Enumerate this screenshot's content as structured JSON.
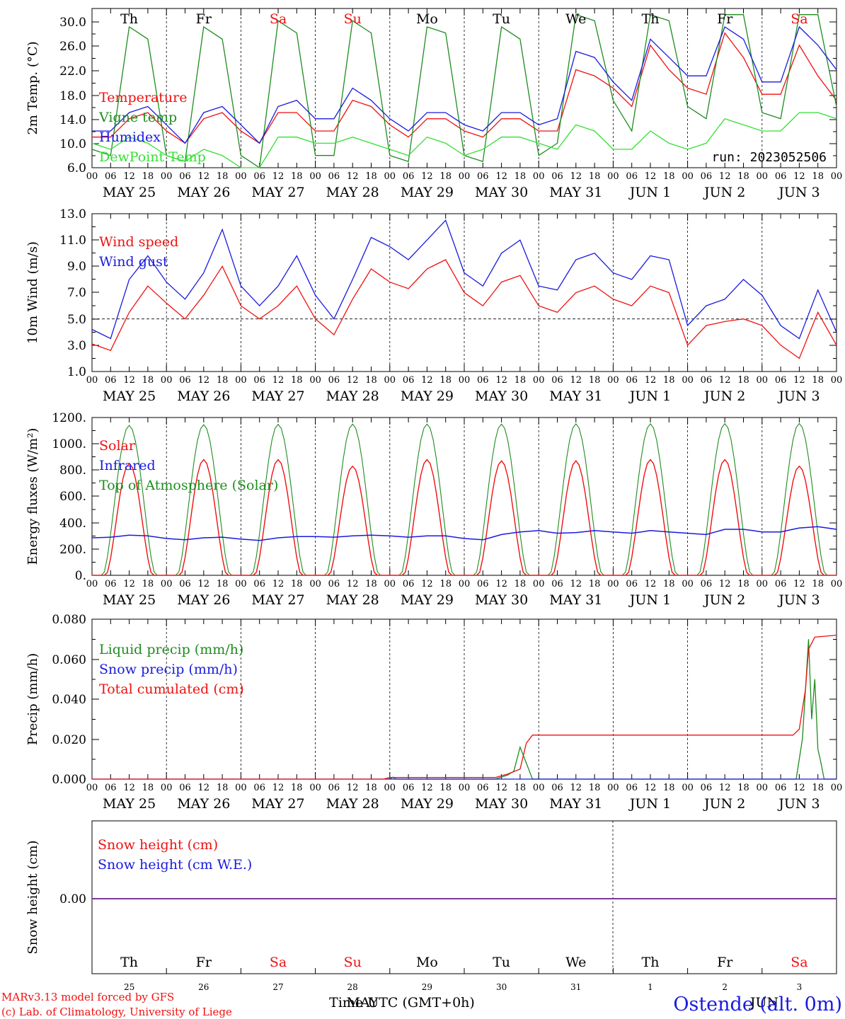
{
  "colors": {
    "red": "#ee1111",
    "blue": "#1a1ae0",
    "green": "#1f8c1f",
    "lightgreen": "#33e033",
    "purple": "#7a3a9a",
    "black": "#000000"
  },
  "day_names": [
    "Th",
    "Fr",
    "Sa",
    "Su",
    "Mo",
    "Tu",
    "We",
    "Th",
    "Fr",
    "Sa"
  ],
  "weekend": [
    false,
    false,
    true,
    true,
    false,
    false,
    false,
    false,
    false,
    true
  ],
  "date_labels": [
    "MAY 25",
    "MAY 26",
    "MAY 27",
    "MAY 28",
    "MAY 29",
    "MAY 30",
    "MAY 31",
    "JUN  1",
    "JUN  2",
    "JUN  3"
  ],
  "hour_labels": [
    "00",
    "06",
    "12",
    "18"
  ],
  "bottom_day_numbers": [
    "25",
    "26",
    "27",
    "28",
    "29",
    "30",
    "31",
    "1",
    "2",
    "3"
  ],
  "time_axis_label": "Time UTC (GMT+0h)",
  "month_labels": [
    "MAY",
    "JUN"
  ],
  "footer": {
    "model": "MARv3.13 model forced by GFS",
    "credit": "(c) Lab. of Climatology, University of Liege",
    "station": "Ostende (alt. 0m)"
  },
  "chart_data": [
    {
      "type": "line",
      "ylabel": "2m Temp. (°C)",
      "ylim": [
        6.0,
        32.0
      ],
      "yticks": [
        "6.0",
        "10.0",
        "14.0",
        "18.0",
        "22.0",
        "26.0",
        "30.0"
      ],
      "run_label": "run: 2023052506",
      "x": "hours since 2023-05-25 00 UTC (0-240, every 6h)",
      "series": [
        {
          "name": "Temperature",
          "color": "red",
          "values": [
            11,
            11,
            14,
            15,
            12,
            10,
            14,
            15,
            12,
            10,
            15,
            15,
            12,
            12,
            17,
            16,
            13,
            11,
            14,
            14,
            12,
            11,
            14,
            14,
            12,
            12,
            22,
            21,
            19,
            16,
            26,
            22,
            19,
            18,
            28,
            24,
            18,
            18,
            26,
            21,
            17
          ]
        },
        {
          "name": "Vigne temp",
          "color": "green",
          "values": [
            9,
            8,
            29,
            27,
            8,
            7,
            29,
            27,
            8,
            6,
            30,
            28,
            8,
            8,
            30,
            28,
            8,
            7,
            29,
            28,
            8,
            7,
            29,
            27,
            8,
            10,
            31,
            30,
            17,
            12,
            31,
            30,
            16,
            14,
            31,
            31,
            15,
            14,
            31,
            31,
            16
          ]
        },
        {
          "name": "Humidex",
          "color": "blue",
          "values": [
            12,
            12,
            15,
            16,
            13,
            10,
            15,
            16,
            13,
            10,
            16,
            17,
            14,
            14,
            19,
            17,
            14,
            12,
            15,
            15,
            13,
            12,
            15,
            15,
            13,
            14,
            25,
            24,
            20,
            17,
            27,
            24,
            21,
            21,
            29,
            27,
            20,
            20,
            29,
            26,
            22
          ]
        },
        {
          "name": "DewPoint Temp",
          "color": "lightgreen",
          "values": [
            10,
            9,
            11,
            10,
            8,
            7,
            9,
            8,
            6,
            6,
            11,
            11,
            10,
            10,
            11,
            10,
            9,
            8,
            11,
            10,
            8,
            9,
            11,
            11,
            10,
            9,
            13,
            12,
            9,
            9,
            12,
            10,
            9,
            10,
            14,
            13,
            12,
            12,
            15,
            15,
            14
          ]
        }
      ]
    },
    {
      "type": "line",
      "ylabel": "10m Wind (m/s)",
      "ylim": [
        1.0,
        13.0
      ],
      "yticks": [
        "1.0",
        "3.0",
        "5.0",
        "7.0",
        "9.0",
        "11.0",
        "13.0"
      ],
      "reference_line": 5.0,
      "series": [
        {
          "name": "Wind speed",
          "color": "red",
          "values": [
            3.1,
            2.6,
            5.5,
            7.5,
            6.2,
            5.0,
            6.8,
            9.0,
            6.0,
            5.0,
            6.0,
            7.5,
            5.0,
            3.8,
            6.5,
            8.8,
            7.8,
            7.3,
            8.8,
            9.5,
            7.0,
            6.0,
            7.8,
            8.3,
            6.0,
            5.5,
            7.0,
            7.5,
            6.5,
            6.0,
            7.5,
            7.0,
            3.0,
            4.5,
            4.8,
            5.0,
            4.5,
            3.0,
            2.0,
            5.5,
            3.0
          ]
        },
        {
          "name": "Wind gust",
          "color": "blue",
          "values": [
            4.2,
            3.5,
            8.0,
            9.8,
            7.8,
            6.5,
            8.5,
            11.8,
            7.5,
            6.0,
            7.5,
            9.8,
            6.8,
            5.0,
            8.0,
            11.2,
            10.5,
            9.5,
            11.0,
            12.5,
            8.5,
            7.5,
            10.0,
            11.0,
            7.5,
            7.2,
            9.5,
            10.0,
            8.5,
            8.0,
            9.8,
            9.5,
            4.5,
            6.0,
            6.5,
            8.0,
            6.8,
            4.5,
            3.5,
            7.2,
            4.0
          ]
        }
      ]
    },
    {
      "type": "line",
      "ylabel": "Energy fluxes (W/m²)",
      "ylim": [
        0,
        1200
      ],
      "yticks": [
        "0.",
        "200.",
        "400.",
        "600.",
        "800.",
        "1000.",
        "1200."
      ],
      "series": [
        {
          "name": "Solar",
          "color": "red",
          "peaks": [
            850,
            880,
            880,
            830,
            880,
            870,
            870,
            880,
            880,
            830
          ]
        },
        {
          "name": "Infrared",
          "color": "blue",
          "values": [
            285,
            290,
            305,
            300,
            280,
            270,
            285,
            290,
            275,
            265,
            285,
            295,
            295,
            290,
            300,
            305,
            300,
            290,
            300,
            300,
            280,
            270,
            310,
            330,
            340,
            320,
            325,
            340,
            330,
            320,
            340,
            330,
            320,
            310,
            350,
            350,
            330,
            330,
            360,
            370,
            350
          ]
        },
        {
          "name": "Top of Atmosphere (Solar)",
          "color": "green",
          "peaks": [
            1140,
            1145,
            1148,
            1150,
            1150,
            1150,
            1152,
            1152,
            1153,
            1155
          ]
        }
      ]
    },
    {
      "type": "line",
      "ylabel": "Precip (mm/h)",
      "ylim": [
        0.0,
        0.08
      ],
      "yticks": [
        "0.000",
        "0.020",
        "0.040",
        "0.060",
        "0.080"
      ],
      "series": [
        {
          "name": "Liquid precip (mm/h)",
          "color": "green",
          "points": [
            [
              96,
              0
            ],
            [
              97,
              0.001
            ],
            [
              98,
              0
            ],
            [
              130,
              0
            ],
            [
              134,
              0.002
            ],
            [
              136,
              0.004
            ],
            [
              138,
              0.016
            ],
            [
              140,
              0.008
            ],
            [
              142,
              0
            ],
            [
              227,
              0
            ],
            [
              229,
              0.02
            ],
            [
              230,
              0.045
            ],
            [
              231,
              0.07
            ],
            [
              232,
              0.03
            ],
            [
              233,
              0.05
            ],
            [
              234,
              0.015
            ],
            [
              235,
              0.008
            ],
            [
              236,
              0
            ],
            [
              240,
              0
            ]
          ]
        },
        {
          "name": "Snow precip (mm/h)",
          "color": "blue",
          "points": [
            [
              0,
              0
            ],
            [
              240,
              0
            ]
          ]
        },
        {
          "name": "Total cumulated (cm)",
          "color": "red",
          "points": [
            [
              0,
              0
            ],
            [
              94,
              0
            ],
            [
              96,
              0.0008
            ],
            [
              130,
              0.0008
            ],
            [
              134,
              0.0025
            ],
            [
              138,
              0.005
            ],
            [
              140,
              0.018
            ],
            [
              142,
              0.022
            ],
            [
              226,
              0.022
            ],
            [
              228,
              0.025
            ],
            [
              230,
              0.045
            ],
            [
              231,
              0.065
            ],
            [
              233,
              0.071
            ],
            [
              240,
              0.072
            ]
          ]
        }
      ]
    },
    {
      "type": "line",
      "ylabel": "Snow height (cm)",
      "ytick": "0.00",
      "series": [
        {
          "name": "Snow height (cm)",
          "color": "red",
          "values": [
            0,
            0
          ]
        },
        {
          "name": "Snow height (cm W.E.)",
          "color": "blue",
          "values": [
            0,
            0
          ]
        }
      ]
    }
  ]
}
